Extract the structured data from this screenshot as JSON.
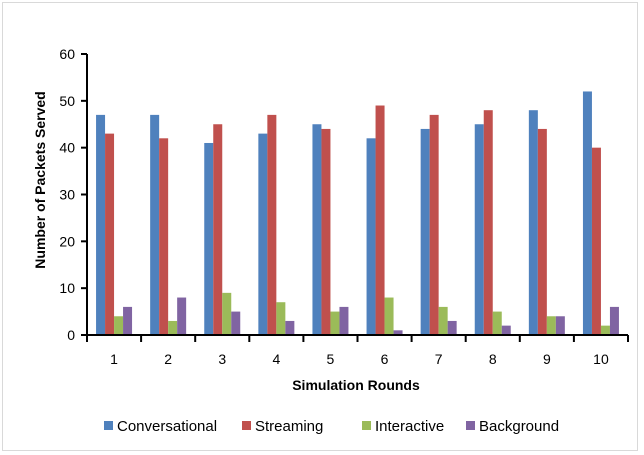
{
  "chart_data": {
    "type": "bar",
    "title": "",
    "xlabel": "Simulation Rounds",
    "ylabel": "Number of Packets Served",
    "ylim": [
      0,
      60
    ],
    "yticks": [
      0,
      10,
      20,
      30,
      40,
      50,
      60
    ],
    "categories": [
      "1",
      "2",
      "3",
      "4",
      "5",
      "6",
      "7",
      "8",
      "9",
      "10"
    ],
    "series": [
      {
        "name": "Conversational",
        "color": "#4f81bd",
        "values": [
          47,
          47,
          41,
          43,
          45,
          42,
          44,
          45,
          48,
          52
        ]
      },
      {
        "name": "Streaming",
        "color": "#c0504d",
        "values": [
          43,
          42,
          45,
          47,
          44,
          49,
          47,
          48,
          44,
          40
        ]
      },
      {
        "name": "Interactive",
        "color": "#9bbb59",
        "values": [
          4,
          3,
          9,
          7,
          5,
          8,
          6,
          5,
          4,
          2
        ]
      },
      {
        "name": "Background",
        "color": "#8064a2",
        "values": [
          6,
          8,
          5,
          3,
          6,
          1,
          3,
          2,
          4,
          6
        ]
      }
    ],
    "grid": false,
    "legend_position": "bottom"
  }
}
